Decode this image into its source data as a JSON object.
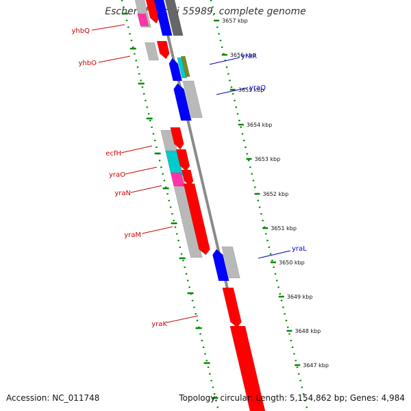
{
  "title": "Escherichia coli 55989, complete genome",
  "footer": {
    "accession": "Accession: NC_011748",
    "topology": "Topology: circular; Length: 5,154,862 bp; Genes: 4,984"
  },
  "colors": {
    "forward": "#ff0000",
    "reverse": "#0000ff",
    "gray": "#b9b9b9",
    "darkgray": "#666666",
    "cyan": "#00cccc",
    "magenta": "#ff33aa",
    "olive": "#7a8a2a",
    "guide_dots": "#008800",
    "backbone": "#8a8a8a",
    "forward_label": "#cc0000",
    "reverse_label": "#0000cc"
  },
  "ticks": [
    {
      "label": "3657 kbp"
    },
    {
      "label": "3656 kbp"
    },
    {
      "label": "3655 kbp"
    },
    {
      "label": "3654 kbp"
    },
    {
      "label": "3653 kbp"
    },
    {
      "label": "3652 kbp"
    },
    {
      "label": "3651 kbp"
    },
    {
      "label": "3650 kbp"
    },
    {
      "label": "3649 kbp"
    },
    {
      "label": "3648 kbp"
    },
    {
      "label": "3647 kbp"
    }
  ],
  "genes_labeled": [
    {
      "name": "yhbQ",
      "strand": "forward"
    },
    {
      "name": "yhbO",
      "strand": "forward"
    },
    {
      "name": "yraR",
      "strand": "reverse"
    },
    {
      "name": "yraQ",
      "strand": "reverse"
    },
    {
      "name": "ecfH",
      "strand": "forward"
    },
    {
      "name": "yraO",
      "strand": "forward"
    },
    {
      "name": "yraN",
      "strand": "forward"
    },
    {
      "name": "yraM",
      "strand": "forward"
    },
    {
      "name": "yraL",
      "strand": "reverse"
    },
    {
      "name": "yraK",
      "strand": "forward"
    }
  ]
}
